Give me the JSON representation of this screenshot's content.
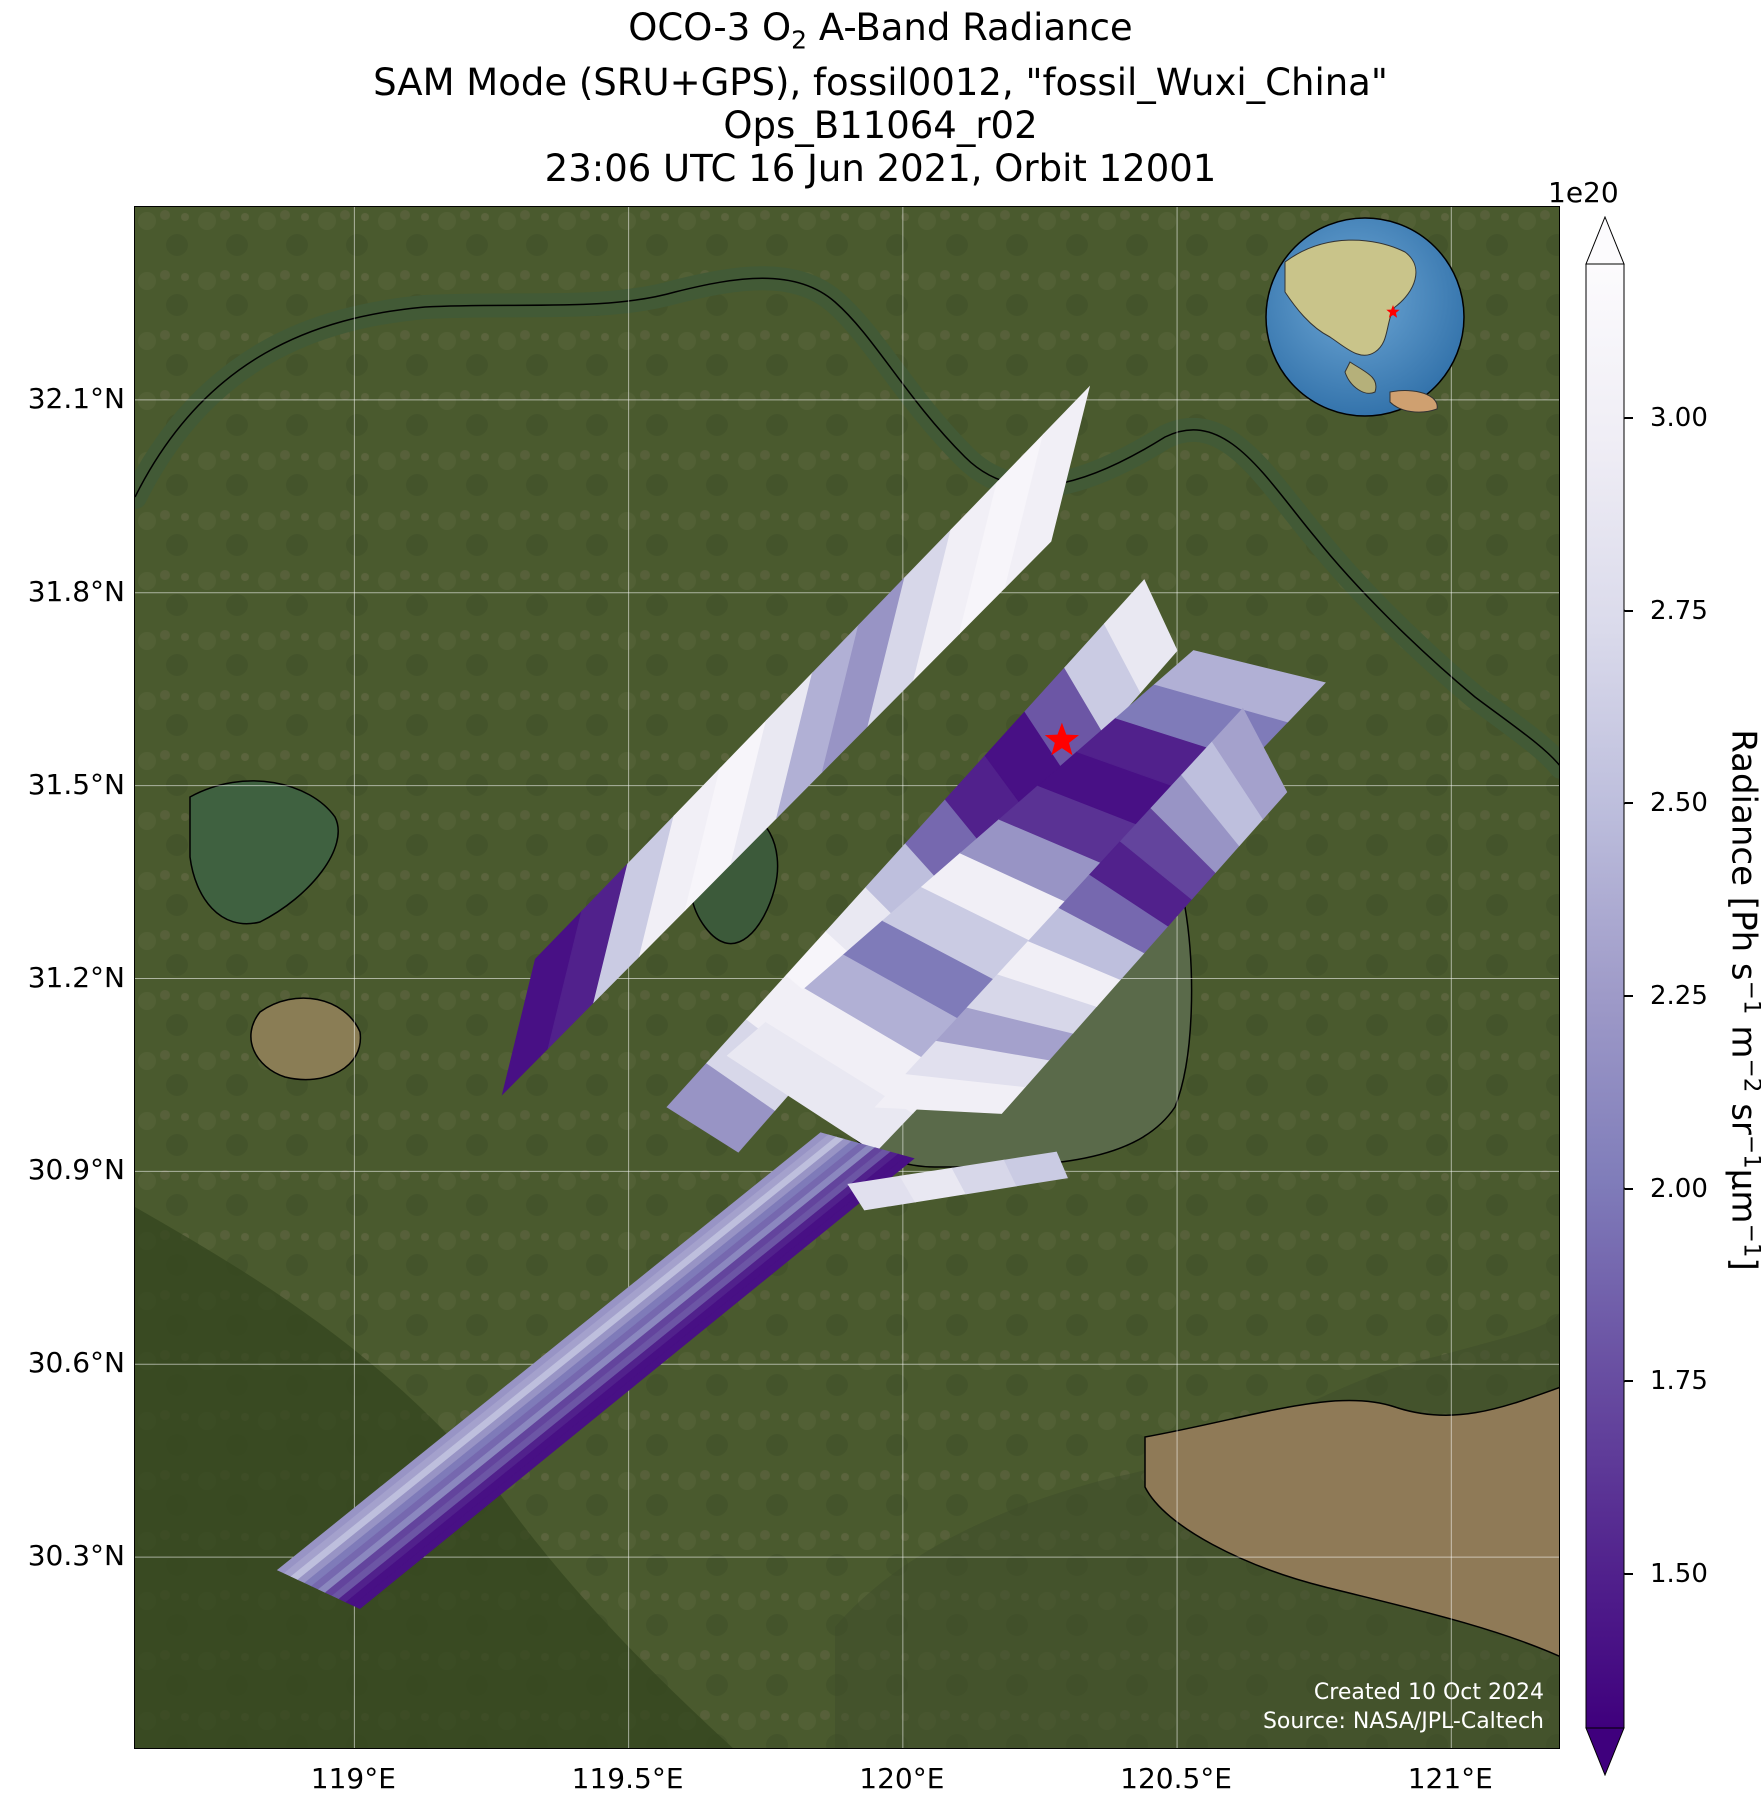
{
  "title": {
    "line1_pre": "OCO-3 O",
    "line1_sub": "2",
    "line1_post": " A-Band Radiance",
    "line2": "SAM Mode (SRU+GPS), fossil0012, \"fossil_Wuxi_China\"",
    "line3": "Ops_B11064_r02",
    "line4": "23:06 UTC 16 Jun 2021, Orbit 12001"
  },
  "map": {
    "lon_range": [
      118.6,
      121.2
    ],
    "lat_range": [
      30.0,
      32.4
    ],
    "lat_ticks": [
      "32.1°N",
      "31.8°N",
      "31.5°N",
      "31.2°N",
      "30.9°N",
      "30.6°N",
      "30.3°N"
    ],
    "lat_values": [
      32.1,
      31.8,
      31.5,
      31.2,
      30.9,
      30.6,
      30.3
    ],
    "lon_ticks": [
      "119°E",
      "119.5°E",
      "120°E",
      "120.5°E",
      "121°E"
    ],
    "lon_values": [
      119.0,
      119.5,
      120.0,
      120.5,
      121.0
    ],
    "background": "satellite imagery",
    "target_marker": {
      "lon": 120.29,
      "lat": 31.57,
      "color": "#ff0000",
      "icon": "star-icon"
    },
    "inset_globe": {
      "icon": "globe-icon",
      "marker_color": "#ff0000"
    }
  },
  "colorbar": {
    "label_main": "Radiance [Ph s",
    "exponent_label": "1e20",
    "ticks": [
      "1.50",
      "1.75",
      "2.00",
      "2.25",
      "2.50",
      "2.75",
      "3.00"
    ],
    "tick_values": [
      1.5,
      1.75,
      2.0,
      2.25,
      2.5,
      2.75,
      3.0
    ],
    "range": [
      1.3,
      3.2
    ],
    "extend": "both",
    "colormap": "Purples_r",
    "colors": [
      "#3f007d",
      "#54278f",
      "#6a51a3",
      "#807dba",
      "#9e9ac8",
      "#bcbddc",
      "#dadaeb",
      "#efedf5",
      "#fcfbfd"
    ]
  },
  "credits": {
    "created": "Created 10 Oct 2024",
    "source": "Source: NASA/JPL-Caltech"
  },
  "chart_data": {
    "type": "heatmap",
    "xlabel": "",
    "ylabel": "",
    "colorbar_label": "Radiance [Ph s−1 m−2 sr−1μm−1]",
    "value_scale": "1e20",
    "swaths": [
      {
        "corners": [
          [
            119.33,
            31.23
          ],
          [
            120.34,
            32.12
          ],
          [
            120.27,
            31.88
          ],
          [
            119.27,
            31.02
          ]
        ],
        "values": [
          1.4,
          1.5,
          2.6,
          3.0,
          3.1,
          2.9,
          2.4,
          2.2,
          2.7,
          3.0,
          3.1,
          3.0
        ]
      },
      {
        "corners": [
          [
            119.57,
            31.0
          ],
          [
            120.44,
            31.82
          ],
          [
            120.5,
            31.71
          ],
          [
            119.7,
            30.93
          ]
        ],
        "values": [
          2.2,
          2.7,
          3.0,
          3.1,
          2.9,
          2.5,
          1.9,
          1.5,
          1.4,
          1.8,
          2.6,
          2.9
        ]
      },
      {
        "corners": [
          [
            119.68,
            31.08
          ],
          [
            120.53,
            31.71
          ],
          [
            120.77,
            31.66
          ],
          [
            119.95,
            30.93
          ]
        ],
        "values": [
          2.9,
          3.0,
          2.4,
          2.0,
          2.6,
          3.0,
          2.2,
          1.6,
          1.4,
          1.5,
          2.0,
          2.4
        ]
      },
      {
        "corners": [
          [
            119.95,
            31.0
          ],
          [
            120.62,
            31.62
          ],
          [
            120.7,
            31.49
          ],
          [
            120.18,
            30.99
          ]
        ],
        "values": [
          3.0,
          2.8,
          2.3,
          2.7,
          3.0,
          2.5,
          1.9,
          1.5,
          1.7,
          2.2,
          2.5,
          2.3
        ]
      },
      {
        "corners": [
          [
            119.85,
            30.96
          ],
          [
            120.02,
            30.92
          ],
          [
            119.01,
            30.22
          ],
          [
            118.86,
            30.28
          ]
        ],
        "values": [
          2.2,
          2.3,
          2.5,
          2.2,
          2.0,
          1.9,
          2.1,
          1.7,
          1.8,
          1.5,
          1.4,
          1.4
        ]
      },
      {
        "corners": [
          [
            119.9,
            30.88
          ],
          [
            120.28,
            30.93
          ],
          [
            120.3,
            30.89
          ],
          [
            119.93,
            30.84
          ]
        ],
        "values": [
          2.8,
          2.9,
          2.7,
          2.6
        ]
      }
    ],
    "marker": {
      "label": "target",
      "lon": 120.29,
      "lat": 31.57
    }
  }
}
